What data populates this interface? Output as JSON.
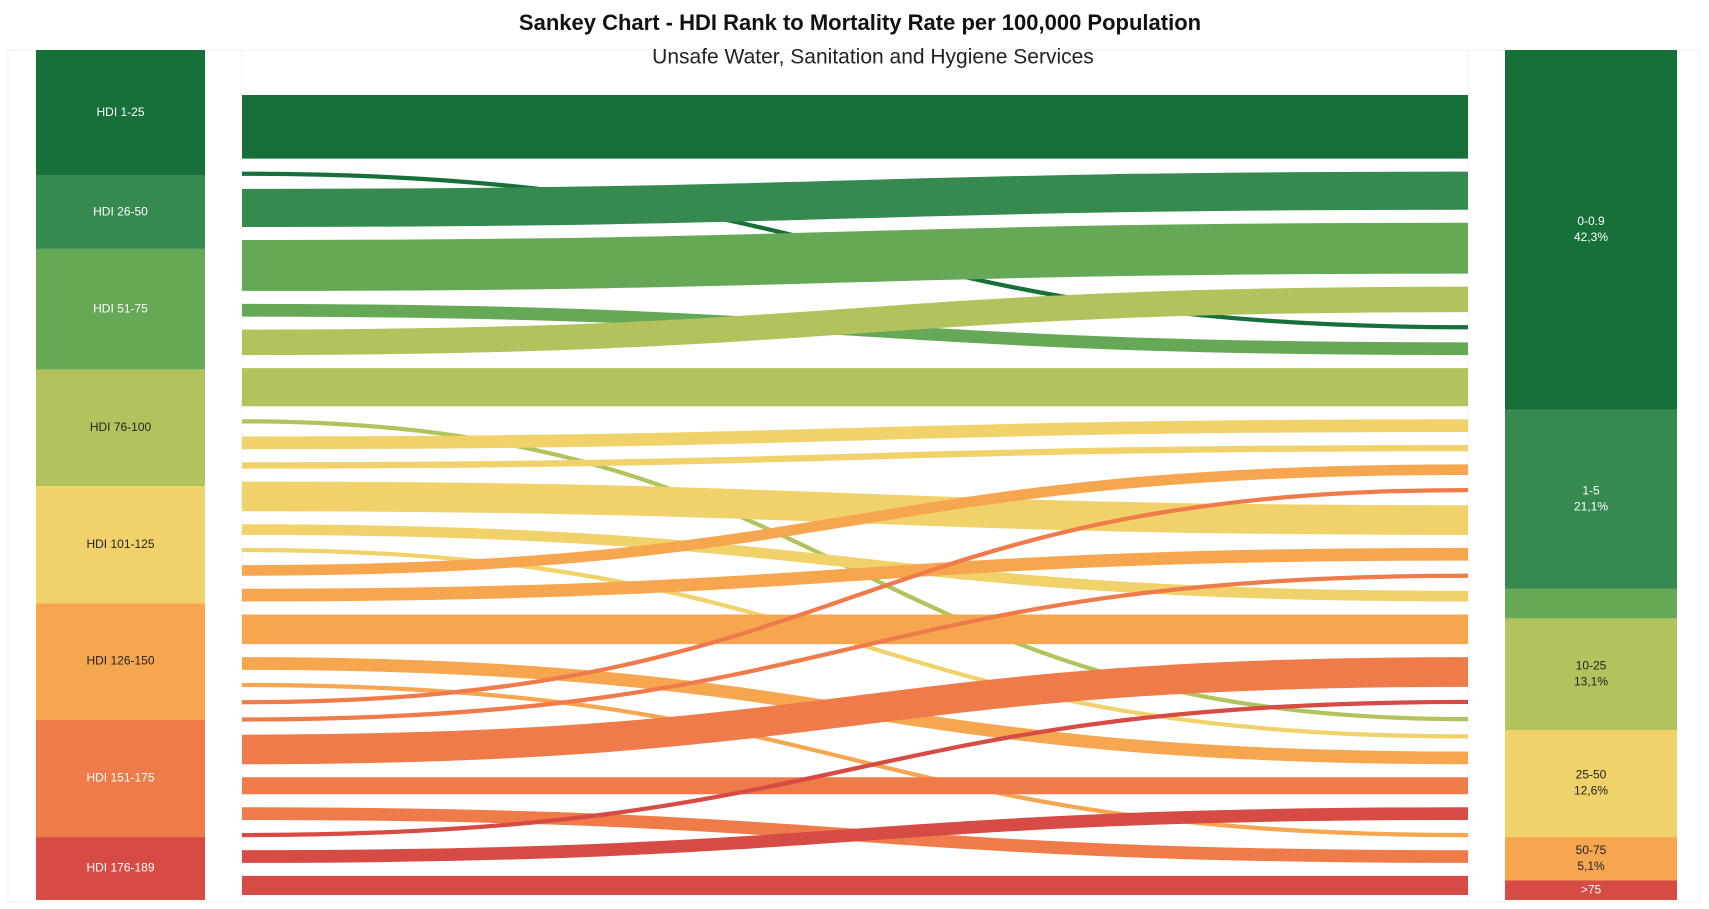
{
  "chart_data": {
    "type": "sankey",
    "title": "Sankey Chart - HDI Rank to Mortality Rate per 100,000 Population",
    "subtitle": "Unsafe Water, Sanitation and Hygiene Services",
    "nodes_left": {
      "names": [
        "HDI 1-25",
        "HDI 26-50",
        "HDI 51-75",
        "HDI 76-100",
        "HDI 101-125",
        "HDI 126-150",
        "HDI 151-175",
        "HDI 176-189"
      ],
      "values": [
        14.8,
        8.6,
        14.2,
        13.7,
        13.8,
        13.7,
        13.8,
        7.4
      ],
      "colors": [
        "#17703a",
        "#368a4f",
        "#65a957",
        "#b2c35e",
        "#f1d26a",
        "#f6a64f",
        "#ef7b4b",
        "#d64b43"
      ]
    },
    "nodes_right": {
      "names": [
        "0-0.9",
        "1-5",
        null,
        "10-25",
        "25-50",
        "50-75",
        ">75"
      ],
      "values": [
        42.3,
        21.1,
        3.5,
        13.1,
        12.6,
        5.1,
        2.3
      ],
      "value_labels": [
        "42,3%",
        "21,1%",
        null,
        "13,1%",
        "12,6%",
        "5,1%",
        null
      ],
      "colors": [
        "#17703a",
        "#368a4f",
        "#65a957",
        "#b2c35e",
        "#f1d26a",
        "#f6a64f",
        "#d64b43"
      ]
    },
    "links": {
      "source": [
        0,
        0,
        1,
        2,
        2,
        3,
        3,
        3,
        4,
        4,
        4,
        4,
        4,
        5,
        5,
        5,
        5,
        5,
        6,
        6,
        6,
        6,
        6,
        7,
        7,
        7
      ],
      "target": [
        0,
        1,
        0,
        0,
        1,
        0,
        1,
        5,
        1,
        2,
        3,
        4,
        5,
        3,
        2,
        4,
        5,
        6,
        3,
        2,
        4,
        5,
        6,
        4,
        5,
        6
      ],
      "values": [
        30,
        2,
        18,
        24,
        6,
        12,
        18,
        2,
        6,
        3,
        14,
        5,
        2,
        6,
        5,
        14,
        6,
        2,
        2,
        2,
        14,
        8,
        6,
        2,
        6,
        9
      ]
    }
  }
}
